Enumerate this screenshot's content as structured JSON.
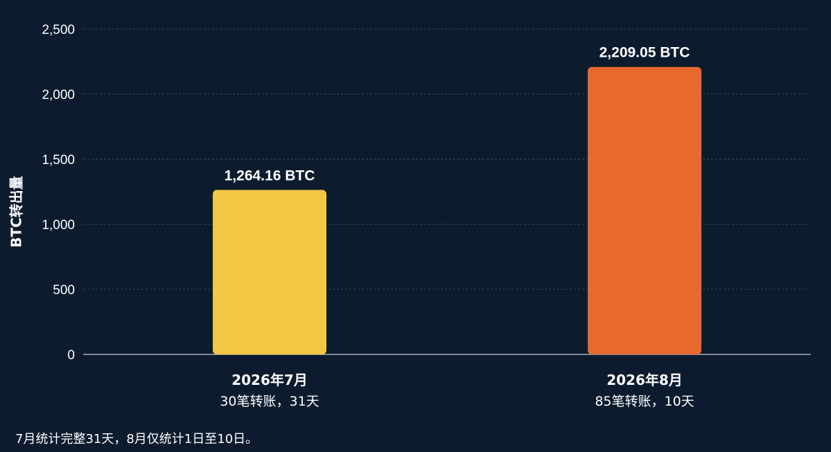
{
  "chart_data": {
    "type": "bar",
    "categories": [
      "2026年7月",
      "2026年8月"
    ],
    "category_subtitles": [
      "30笔转账，31天",
      "85笔转账，10天"
    ],
    "values": [
      1264.16,
      2209.05
    ],
    "data_labels": [
      "1,264.16 BTC",
      "2,209.05 BTC"
    ],
    "bar_colors": [
      "#f2c744",
      "#e8692d"
    ],
    "ylabel": "BTC转出量",
    "xlabel": "",
    "ylim": [
      0,
      2500
    ],
    "yticks": [
      0,
      500,
      1000,
      1500,
      2000,
      2500
    ],
    "ytick_labels": [
      "0",
      "500",
      "1,000",
      "1,500",
      "2,000",
      "2,500"
    ],
    "grid": true,
    "legend": "none"
  },
  "footnote": "7月统计完整31天，8月仅统计1日至10日。"
}
